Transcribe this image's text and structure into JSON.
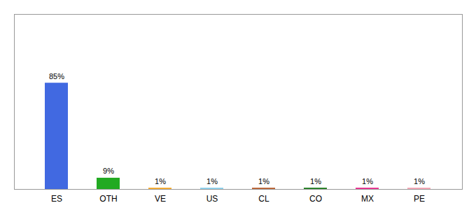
{
  "chart_data": {
    "type": "bar",
    "categories": [
      "ES",
      "OTH",
      "VE",
      "US",
      "CL",
      "CO",
      "MX",
      "PE"
    ],
    "values": [
      85,
      9,
      1,
      1,
      1,
      1,
      1,
      1
    ],
    "value_labels": [
      "85%",
      "9%",
      "1%",
      "1%",
      "1%",
      "1%",
      "1%",
      "1%"
    ],
    "colors": [
      "#4169e1",
      "#22aa22",
      "#f5a623",
      "#87ceeb",
      "#b85c2a",
      "#1a7a1a",
      "#e8278a",
      "#f4a0b0"
    ],
    "ylim": [
      0,
      140
    ],
    "data_labels": true,
    "tick_labels": "x",
    "grid": false
  }
}
